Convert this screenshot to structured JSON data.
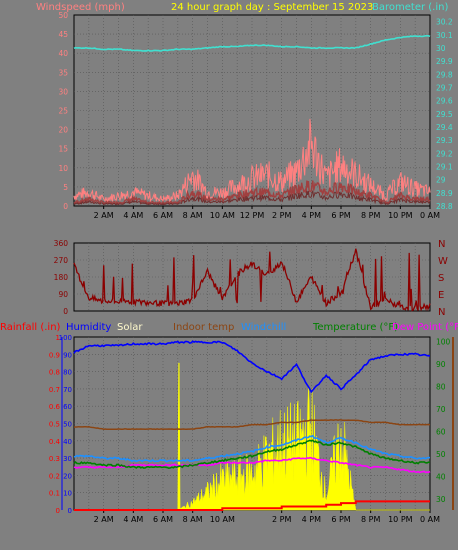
{
  "colors": {
    "background": "#808080",
    "plot_bg": "#808080",
    "grid": "#555555",
    "wind_speed_avg": "#a04040",
    "wind_gust": "#ff8080",
    "wind_speed_label": "#ff8080",
    "barometer": "#40e0d0",
    "title": "#ffff00",
    "direction": "#8b0000",
    "rainfall": "#ff0000",
    "humidity": "#0000ff",
    "solar": "#ffff00",
    "indoor_temp": "#8b4513",
    "windchill": "#1e90ff",
    "temperature": "#008000",
    "dew_point": "#ff00ff",
    "solar_label": "#fffacd",
    "rainfall_axis": "#ff0000",
    "humidity_axis": "#0000ff",
    "temp_axis": "#008000",
    "indoor_axis": "#8b4513"
  },
  "chart_data": [
    {
      "type": "line",
      "title": "24 hour graph day : September 15 2023",
      "y_left_label": "Windspeed (mph)",
      "y_right_label": "Barometer (.in)",
      "y_left_ticks": [
        "0",
        "5",
        "10",
        "15",
        "20",
        "25",
        "30",
        "35",
        "40",
        "45",
        "50"
      ],
      "y_left_range": [
        0,
        50
      ],
      "y_right_ticks": [
        "28.8",
        "28.9",
        "29",
        "29.1",
        "29.2",
        "29.3",
        "29.4",
        "29.5",
        "29.6",
        "29.7",
        "29.8",
        "29.9",
        "30",
        "30.1",
        "30.2"
      ],
      "y_right_range": [
        28.8,
        30.25
      ],
      "x_ticks": [
        "2 AM",
        "4 AM",
        "6 AM",
        "8 AM",
        "10 AM",
        "12 PM",
        "2 PM",
        "4 PM",
        "6 PM",
        "8 PM",
        "10 PM",
        "0 AM"
      ],
      "x_hours": [
        0,
        1,
        2,
        3,
        4,
        5,
        6,
        7,
        8,
        9,
        10,
        11,
        12,
        13,
        14,
        15,
        16,
        17,
        18,
        19,
        20,
        21,
        22,
        23,
        24
      ],
      "series": [
        {
          "name": "Barometer",
          "axis": "right",
          "values": [
            30.0,
            30.0,
            29.99,
            29.99,
            29.98,
            29.98,
            29.98,
            29.99,
            29.99,
            30.0,
            30.01,
            30.01,
            30.02,
            30.02,
            30.01,
            30.01,
            30.0,
            30.0,
            30.0,
            30.0,
            30.03,
            30.06,
            30.08,
            30.09,
            30.09
          ]
        },
        {
          "name": "Wind gust",
          "axis": "left",
          "values": [
            3,
            4,
            2,
            3,
            4,
            3,
            2,
            3,
            9,
            4,
            4,
            6,
            8,
            9,
            7,
            10,
            18,
            8,
            12,
            9,
            6,
            3,
            7,
            5,
            4
          ]
        },
        {
          "name": "Wind speed",
          "axis": "left",
          "values": [
            1,
            2,
            1,
            1,
            2,
            1,
            1,
            1,
            4,
            2,
            2,
            3,
            4,
            4,
            3,
            5,
            6,
            4,
            6,
            4,
            3,
            1,
            3,
            2,
            2
          ]
        }
      ],
      "grid": true
    },
    {
      "type": "line",
      "title": "",
      "y_left_ticks": [
        "0",
        "90",
        "180",
        "270",
        "360"
      ],
      "y_left_range": [
        0,
        360
      ],
      "y_right_ticks": [
        "N",
        "E",
        "S",
        "W",
        "N"
      ],
      "x_ticks": [],
      "series": [
        {
          "name": "Wind direction",
          "values": [
            240,
            70,
            50,
            50,
            50,
            45,
            40,
            40,
            60,
            210,
            60,
            200,
            250,
            190,
            260,
            50,
            180,
            40,
            100,
            320,
            20,
            60,
            20,
            15,
            25
          ]
        }
      ],
      "grid": true
    },
    {
      "type": "area",
      "title": "",
      "legend": [
        "Rainfall (.in)",
        "Humidity",
        "Solar",
        "Indoor temp",
        "Windchill",
        "Temperature (°F)",
        "Dew Point (°F)"
      ],
      "y_left_ticks": [
        "0",
        "0.1",
        "0.2",
        "0.3",
        "0.4",
        "0.5",
        "0.6",
        "0.7",
        "0.8",
        "0.9",
        "1"
      ],
      "y_left_range": [
        0,
        1
      ],
      "y_right_ticks": [
        "30",
        "40",
        "50",
        "60",
        "70",
        "80",
        "90",
        "100"
      ],
      "y_right_range": [
        25,
        102
      ],
      "x_ticks": [
        "2 AM",
        "4 AM",
        "6 AM",
        "8 AM",
        "10 AM",
        "2 PM",
        "4 PM",
        "6 PM",
        "8 PM",
        "10 PM",
        "0 AM"
      ],
      "x_hours": [
        0,
        1,
        2,
        3,
        4,
        5,
        6,
        7,
        8,
        9,
        10,
        11,
        12,
        13,
        14,
        15,
        16,
        17,
        18,
        19,
        20,
        21,
        22,
        23,
        24
      ],
      "series": [
        {
          "name": "Humidity",
          "values": [
            91,
            95,
            95,
            95,
            96,
            96,
            96,
            97,
            97,
            97,
            97,
            92,
            85,
            80,
            76,
            84,
            68,
            78,
            70,
            78,
            87,
            89,
            90,
            90,
            89
          ]
        },
        {
          "name": "Indoor temp",
          "values": [
            62,
            62,
            61,
            61,
            61,
            61,
            61,
            61,
            61,
            62,
            62,
            62,
            63,
            63,
            64,
            64,
            65,
            65,
            65,
            65,
            64,
            64,
            63,
            63,
            63
          ]
        },
        {
          "name": "Windchill",
          "values": [
            49,
            49,
            48,
            48,
            47,
            47,
            47,
            47,
            47,
            48,
            49,
            50,
            51,
            53,
            54,
            56,
            58,
            55,
            57,
            55,
            52,
            50,
            49,
            48,
            48
          ]
        },
        {
          "name": "Temperature",
          "values": [
            46,
            46,
            45,
            45,
            44,
            44,
            44,
            44,
            45,
            46,
            47,
            48,
            49,
            51,
            52,
            54,
            56,
            54,
            55,
            53,
            50,
            48,
            47,
            46,
            46
          ]
        },
        {
          "name": "Dew Point",
          "values": [
            44,
            44,
            44,
            44,
            45,
            45,
            45,
            45,
            45,
            45,
            46,
            46,
            46,
            47,
            47,
            48,
            48,
            47,
            46,
            45,
            44,
            44,
            43,
            42,
            42
          ]
        },
        {
          "name": "Solar",
          "values": [
            0,
            0,
            0,
            0,
            0,
            0,
            0,
            0,
            0.05,
            0.12,
            0.2,
            0.22,
            0.25,
            0.35,
            0.45,
            0.45,
            0.55,
            0.1,
            0.5,
            0,
            0,
            0,
            0,
            0,
            0
          ]
        },
        {
          "name": "Rainfall",
          "values": [
            0,
            0,
            0,
            0,
            0,
            0,
            0,
            0,
            0,
            0,
            0.01,
            0.01,
            0.01,
            0.01,
            0.02,
            0.02,
            0.02,
            0.03,
            0.04,
            0.05,
            0.05,
            0.05,
            0.05,
            0.05,
            0.05
          ]
        }
      ],
      "grid": true
    }
  ]
}
